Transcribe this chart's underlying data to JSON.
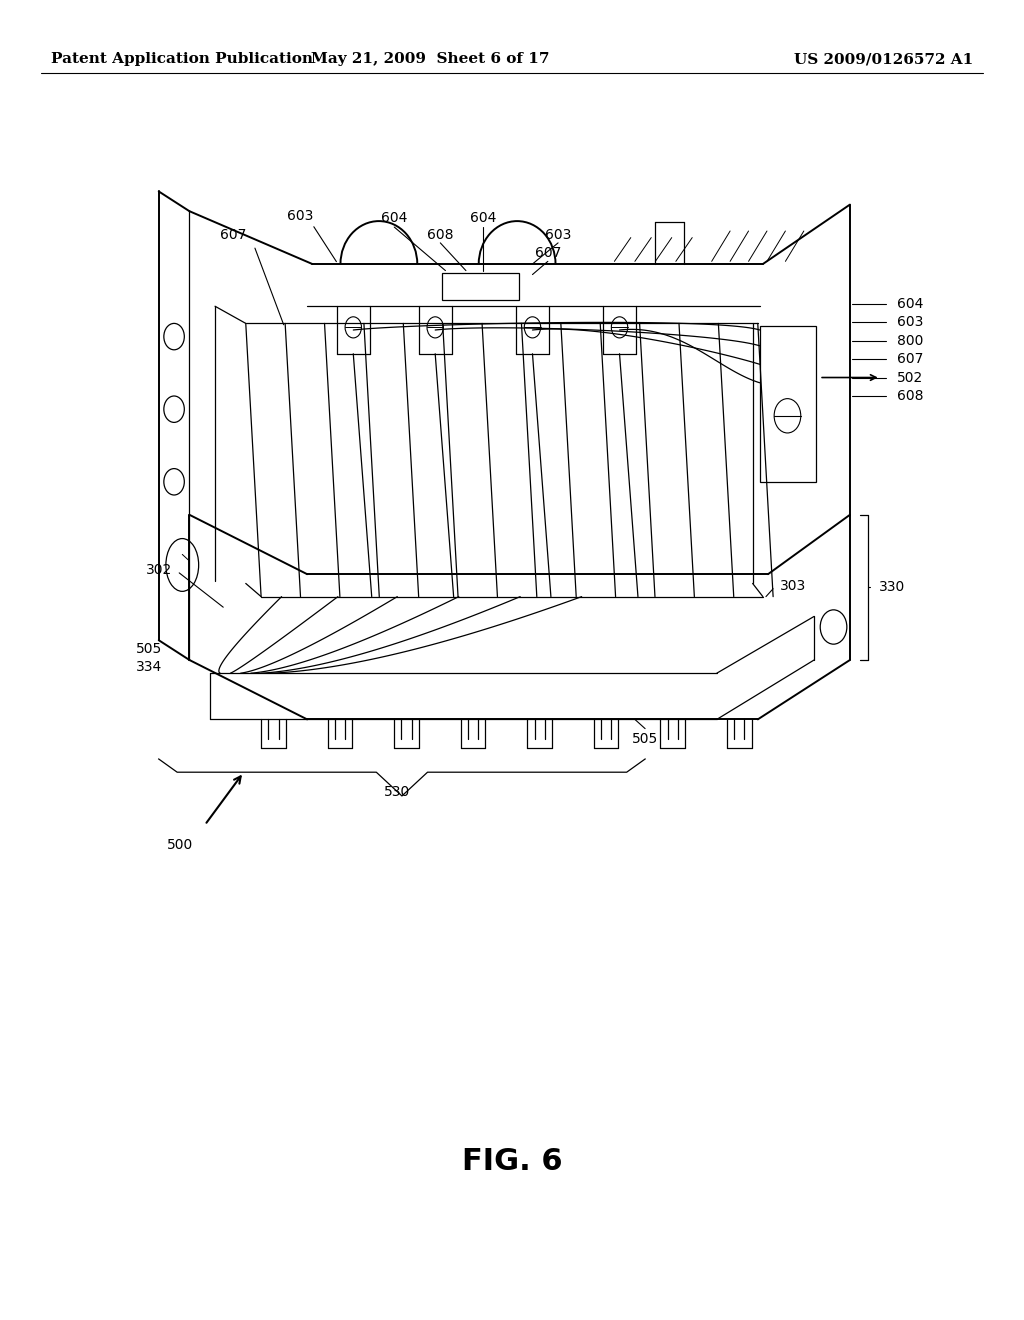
{
  "background_color": "#ffffff",
  "header_left": "Patent Application Publication",
  "header_center": "May 21, 2009  Sheet 6 of 17",
  "header_right": "US 2009/0126572 A1",
  "fig_label": "FIG. 6",
  "title_fontsize": 11,
  "fig_label_fontsize": 22,
  "ref_fontsize": 10
}
